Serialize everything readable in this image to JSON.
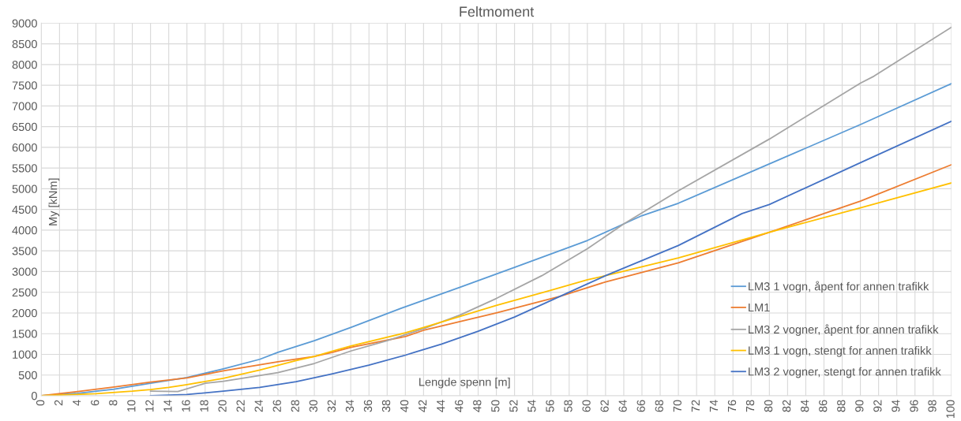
{
  "chart_data": {
    "type": "line",
    "title": "Feltmoment",
    "xlabel": "Lengde spenn [m]",
    "ylabel": "My [kNm]",
    "xlim": [
      0,
      100
    ],
    "xticks": [
      0,
      2,
      4,
      6,
      8,
      10,
      12,
      14,
      16,
      18,
      20,
      22,
      24,
      26,
      28,
      30,
      32,
      34,
      36,
      38,
      40,
      42,
      44,
      46,
      48,
      50,
      52,
      54,
      56,
      58,
      60,
      62,
      64,
      66,
      68,
      70,
      72,
      74,
      76,
      78,
      80,
      82,
      84,
      86,
      88,
      90,
      92,
      94,
      96,
      98,
      100
    ],
    "ylim": [
      0,
      9000
    ],
    "yticks": [
      0,
      500,
      1000,
      1500,
      2000,
      2500,
      3000,
      3500,
      4000,
      4500,
      5000,
      5500,
      6000,
      6500,
      7000,
      7500,
      8000,
      8500,
      9000
    ],
    "grid": true,
    "legend": "bottom right",
    "marker": "none",
    "line_style": "solid",
    "series": [
      {
        "name": "LM3 1 vogn, åpent for annen trafikk",
        "color": "#5b9bd5",
        "x": [
          0,
          4,
          8,
          12,
          16,
          20,
          24,
          26,
          30,
          34,
          40,
          46,
          52,
          60,
          64,
          66,
          70,
          80,
          90,
          100
        ],
        "values": [
          0,
          60,
          160,
          300,
          440,
          650,
          880,
          1050,
          1330,
          1650,
          2150,
          2620,
          3100,
          3750,
          4150,
          4350,
          4650,
          5600,
          6550,
          7540
        ]
      },
      {
        "name": "LM1",
        "color": "#ed7d31",
        "x": [
          0,
          4,
          8,
          12,
          16,
          20,
          26,
          30,
          32,
          34,
          40,
          42,
          50,
          57,
          62,
          70,
          80,
          86,
          90,
          100
        ],
        "values": [
          0,
          100,
          210,
          330,
          430,
          600,
          820,
          950,
          1050,
          1170,
          1430,
          1580,
          2000,
          2400,
          2750,
          3210,
          3950,
          4400,
          4700,
          5580
        ]
      },
      {
        "name": "LM3 2 vogner, åpent for annen trafikk",
        "color": "#a5a5a5",
        "x": [
          12,
          15,
          18,
          20,
          26,
          30,
          34,
          38,
          42,
          46,
          50,
          55,
          60,
          64,
          70,
          80,
          90,
          91.5,
          100
        ],
        "values": [
          110,
          100,
          300,
          350,
          560,
          780,
          1080,
          1330,
          1620,
          1950,
          2350,
          2900,
          3550,
          4150,
          4950,
          6200,
          7550,
          7720,
          8900
        ]
      },
      {
        "name": "LM3 1 vogn, stengt for annen trafikk",
        "color": "#ffc000",
        "x": [
          0,
          6,
          10,
          12,
          14,
          16,
          20,
          24,
          28,
          30,
          32,
          34,
          40,
          42,
          50,
          56,
          60,
          62,
          70,
          80,
          90,
          100
        ],
        "values": [
          0,
          50,
          110,
          150,
          200,
          270,
          420,
          620,
          850,
          950,
          1080,
          1200,
          1520,
          1650,
          2180,
          2550,
          2800,
          2900,
          3330,
          3950,
          4540,
          5140
        ]
      },
      {
        "name": "LM3 2 vogner, stengt for annen trafikk",
        "color": "#4472c4",
        "x": [
          12,
          16,
          20,
          24,
          28,
          32,
          36,
          40,
          41,
          44,
          48,
          52,
          56,
          60,
          62,
          70,
          77,
          80,
          90,
          100
        ],
        "values": [
          0,
          30,
          110,
          200,
          340,
          530,
          740,
          980,
          1050,
          1250,
          1560,
          1900,
          2300,
          2700,
          2900,
          3630,
          4400,
          4620,
          5630,
          6630
        ]
      }
    ]
  }
}
